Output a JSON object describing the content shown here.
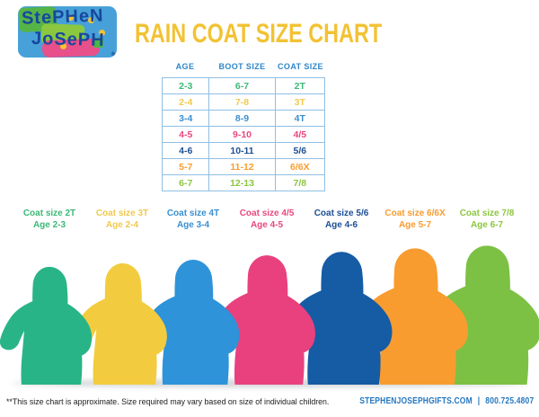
{
  "logo": {
    "line1": "StePHeN",
    "line2": "JoSePH",
    "registered_mark": "®"
  },
  "header": {
    "title": "RAIN COAT SIZE CHART",
    "title_color": "#F2C233"
  },
  "table": {
    "headers": [
      "AGE",
      "BOOT SIZE",
      "COAT SIZE"
    ],
    "header_color": "#2E86C8",
    "border_color": "#8FBFE4",
    "rows": [
      {
        "age": "2-3",
        "boot_size": "6-7",
        "coat_size": "2T",
        "color": "#3CB878"
      },
      {
        "age": "2-4",
        "boot_size": "7-8",
        "coat_size": "3T",
        "color": "#F1C94E"
      },
      {
        "age": "3-4",
        "boot_size": "8-9",
        "coat_size": "4T",
        "color": "#3A8FD0"
      },
      {
        "age": "4-5",
        "boot_size": "9-10",
        "coat_size": "4/5",
        "color": "#E8487F"
      },
      {
        "age": "4-6",
        "boot_size": "10-11",
        "coat_size": "5/6",
        "color": "#1D4F94"
      },
      {
        "age": "5-7",
        "boot_size": "11-12",
        "coat_size": "6/6X",
        "color": "#F89C30"
      },
      {
        "age": "6-7",
        "boot_size": "12-13",
        "coat_size": "7/8",
        "color": "#8CC63F"
      }
    ]
  },
  "coats": [
    {
      "label_line1": "Coat size 2T",
      "label_line2": "Age 2-3",
      "label_color": "#3CB878",
      "coat_color": "#29B488"
    },
    {
      "label_line1": "Coat size 3T",
      "label_line2": "Age 2-4",
      "label_color": "#F1C94E",
      "coat_color": "#F2CC3E"
    },
    {
      "label_line1": "Coat size 4T",
      "label_line2": "Age 3-4",
      "label_color": "#3A8FD0",
      "coat_color": "#2E93D8"
    },
    {
      "label_line1": "Coat size 4/5",
      "label_line2": "Age 4-5",
      "label_color": "#E8487F",
      "coat_color": "#E8417E"
    },
    {
      "label_line1": "Coat size 5/6",
      "label_line2": "Age 4-6",
      "label_color": "#1D4F94",
      "coat_color": "#155CA4"
    },
    {
      "label_line1": "Coat size 6/6X",
      "label_line2": "Age 5-7",
      "label_color": "#F89C30",
      "coat_color": "#F89C30"
    },
    {
      "label_line1": "Coat size 7/8",
      "label_line2": "Age 6-7",
      "label_color": "#8CC63F",
      "coat_color": "#7CC144"
    }
  ],
  "footer": {
    "note": "**This size chart is approximate. Size required may vary based on size of individual children.",
    "website": "STEPHENJOSEPHGIFTS.COM",
    "separator": "|",
    "phone": "800.725.4807",
    "color": "#2477C0"
  }
}
